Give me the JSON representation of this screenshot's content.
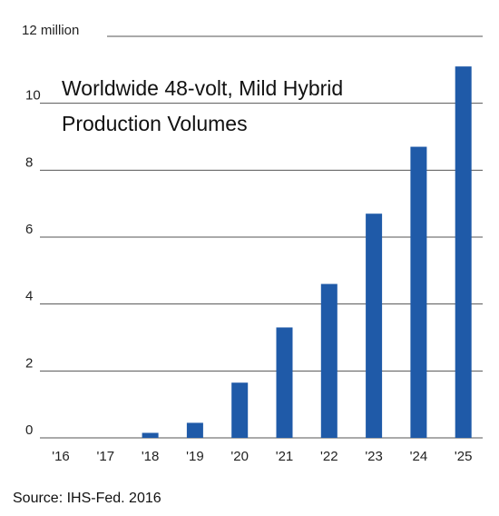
{
  "chart_data": {
    "type": "bar",
    "title": [
      "Worldwide 48-volt, Mild Hybrid",
      "Production Volumes"
    ],
    "categories": [
      "'16",
      "'17",
      "'18",
      "'19",
      "'20",
      "'21",
      "'22",
      "'23",
      "'24",
      "'25"
    ],
    "values": [
      0,
      0,
      0.15,
      0.45,
      1.65,
      3.3,
      4.6,
      6.7,
      8.7,
      11.1
    ],
    "y_tick_labels": [
      "12 million",
      "10",
      "8",
      "6",
      "4",
      "2",
      "0"
    ],
    "y_tick_values": [
      12,
      10,
      8,
      6,
      4,
      2,
      0
    ],
    "ylim": [
      0,
      12
    ],
    "grid": true,
    "bar_color": "#1f5aa8",
    "gridline_color": "#555555",
    "source": "Source: IHS-Fed. 2016"
  }
}
